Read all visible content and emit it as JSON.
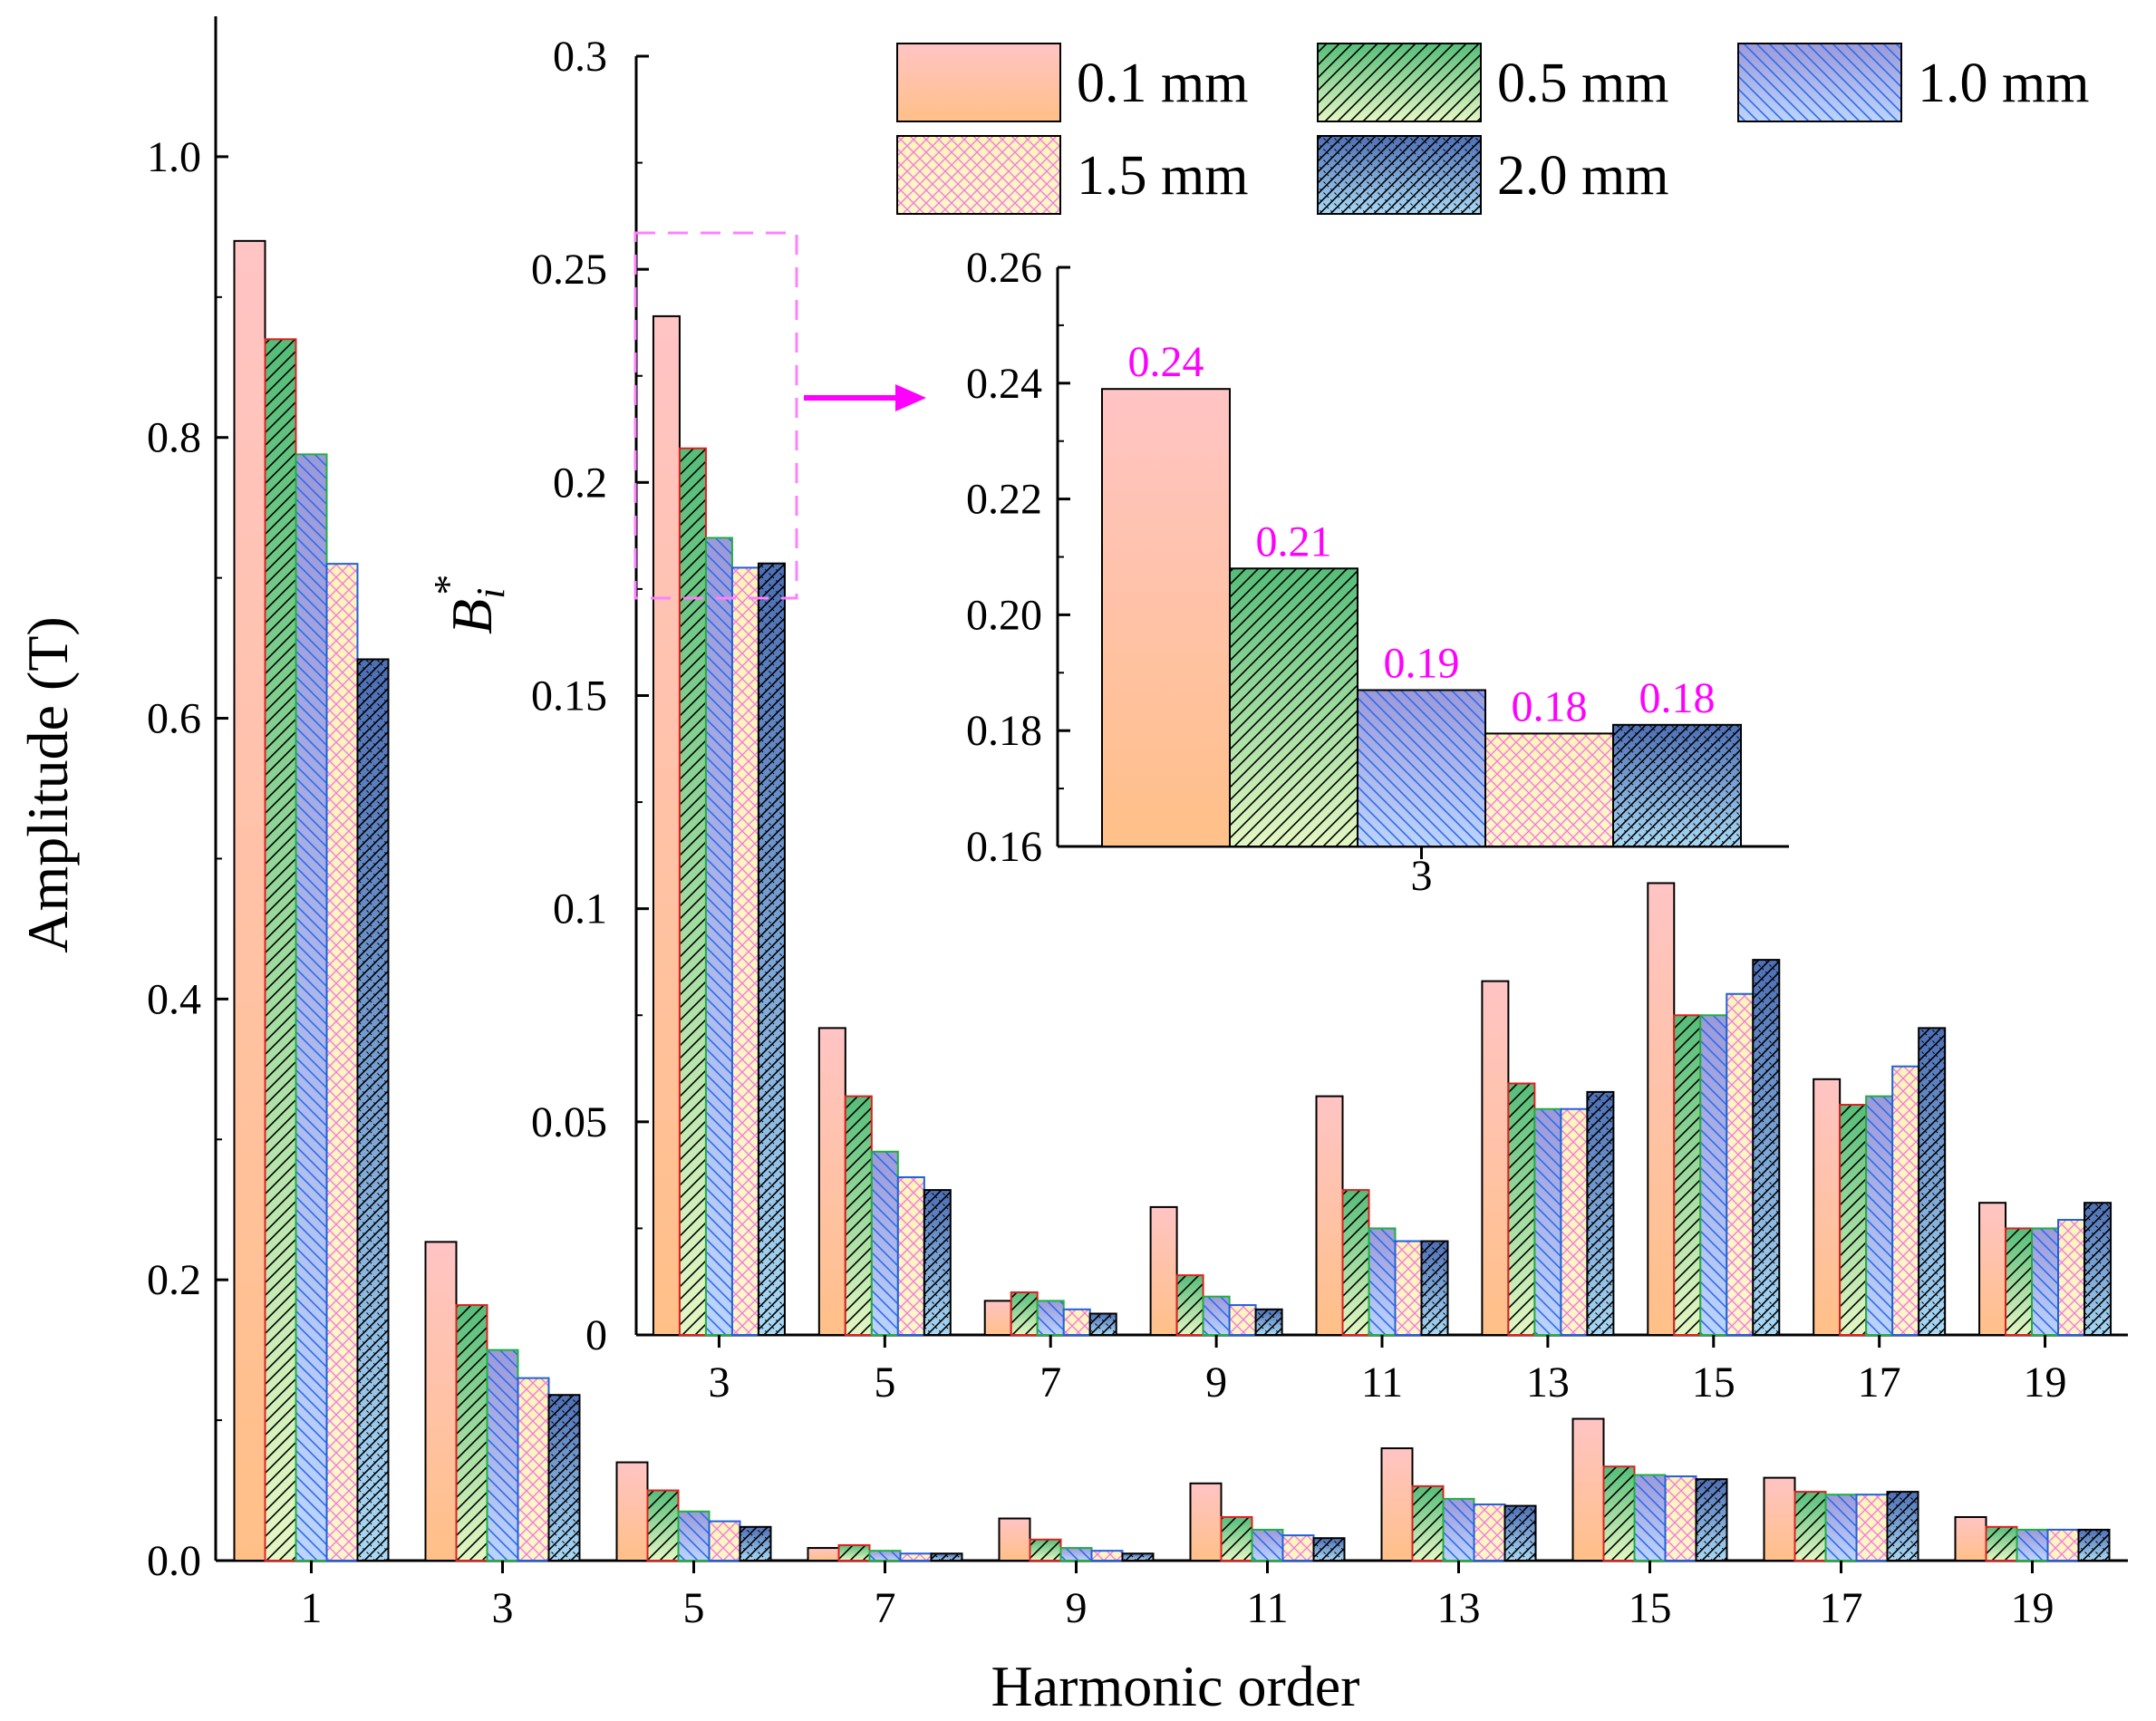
{
  "chart_data": [
    {
      "id": "main",
      "type": "bar",
      "xlabel": "Harmonic order",
      "ylabel": "Amplitude (T)",
      "ylim": [
        0,
        1.1
      ],
      "yticks": [
        "0.0",
        "0.2",
        "0.4",
        "0.6",
        "0.8",
        "1.0"
      ],
      "categories": [
        "1",
        "3",
        "5",
        "7",
        "9",
        "11",
        "13",
        "15",
        "17",
        "19"
      ],
      "series": [
        {
          "name": "0.1 mm",
          "values": [
            0.94,
            0.227,
            0.07,
            0.009,
            0.03,
            0.055,
            0.08,
            0.101,
            0.059,
            0.031
          ]
        },
        {
          "name": "0.5 mm",
          "values": [
            0.87,
            0.182,
            0.05,
            0.011,
            0.015,
            0.031,
            0.053,
            0.067,
            0.049,
            0.024
          ]
        },
        {
          "name": "1.0 mm",
          "values": [
            0.788,
            0.15,
            0.035,
            0.007,
            0.009,
            0.022,
            0.044,
            0.061,
            0.047,
            0.022
          ]
        },
        {
          "name": "1.5 mm",
          "values": [
            0.71,
            0.13,
            0.028,
            0.005,
            0.007,
            0.018,
            0.04,
            0.06,
            0.047,
            0.022
          ]
        },
        {
          "name": "2.0 mm",
          "values": [
            0.642,
            0.118,
            0.024,
            0.005,
            0.005,
            0.016,
            0.039,
            0.058,
            0.049,
            0.022
          ]
        }
      ]
    },
    {
      "id": "inset-normalized",
      "type": "bar",
      "ylabel_base": "B",
      "ylabel_sub": "i",
      "ylabel_sup": "*",
      "ylim": [
        0,
        0.3
      ],
      "yticks": [
        "0",
        "0.05",
        "0.1",
        "0.15",
        "0.2",
        "0.25",
        "0.3"
      ],
      "categories": [
        "3",
        "5",
        "7",
        "9",
        "11",
        "13",
        "15",
        "17",
        "19"
      ],
      "series": [
        {
          "name": "0.1 mm",
          "values": [
            0.239,
            0.072,
            0.008,
            0.03,
            0.056,
            0.083,
            0.106,
            0.06,
            0.031
          ]
        },
        {
          "name": "0.5 mm",
          "values": [
            0.208,
            0.056,
            0.01,
            0.014,
            0.034,
            0.059,
            0.075,
            0.054,
            0.025
          ]
        },
        {
          "name": "1.0 mm",
          "values": [
            0.187,
            0.043,
            0.008,
            0.009,
            0.025,
            0.053,
            0.075,
            0.056,
            0.025
          ]
        },
        {
          "name": "1.5 mm",
          "values": [
            0.18,
            0.037,
            0.006,
            0.007,
            0.022,
            0.053,
            0.08,
            0.063,
            0.027
          ]
        },
        {
          "name": "2.0 mm",
          "values": [
            0.181,
            0.034,
            0.005,
            0.006,
            0.022,
            0.057,
            0.088,
            0.072,
            0.031
          ]
        }
      ]
    },
    {
      "id": "inset-zoom",
      "type": "bar",
      "ylim": [
        0.16,
        0.26
      ],
      "yticks": [
        "0.16",
        "0.18",
        "0.20",
        "0.22",
        "0.24",
        "0.26"
      ],
      "categories": [
        "3"
      ],
      "series": [
        {
          "name": "0.1 mm",
          "values": [
            0.239
          ],
          "label": "0.24"
        },
        {
          "name": "0.5 mm",
          "values": [
            0.208
          ],
          "label": "0.21"
        },
        {
          "name": "1.0 mm",
          "values": [
            0.187
          ],
          "label": "0.19"
        },
        {
          "name": "1.5 mm",
          "values": [
            0.1795
          ],
          "label": "0.18"
        },
        {
          "name": "2.0 mm",
          "values": [
            0.181
          ],
          "label": "0.18"
        }
      ]
    }
  ],
  "legend": {
    "position": "top-right",
    "items": [
      "0.1 mm",
      "0.5 mm",
      "1.0 mm",
      "1.5 mm",
      "2.0 mm"
    ]
  },
  "colors": {
    "pink": "#ffc0c0",
    "orange": "#ffc08a",
    "green": "#5fc07c",
    "green_light": "#dff5c0",
    "purple": "#a09cd8",
    "blue_light": "#b8d0f8",
    "yellow": "#fff2b0",
    "pink_hatch": "#f080e0",
    "navy": "#4a6cb0",
    "sky": "#9fd0f0",
    "outline_red": "#e02020",
    "outline_green": "#20b040",
    "outline_blue": "#2060e0",
    "highlight": "#ff00ff"
  }
}
